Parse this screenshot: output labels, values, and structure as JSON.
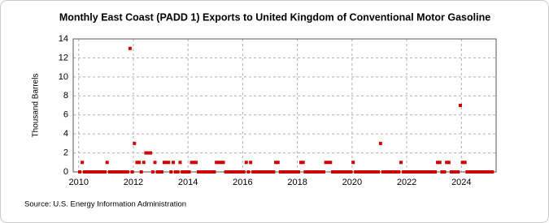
{
  "chart_data": {
    "type": "scatter",
    "title": "Monthly East Coast (PADD 1) Exports to United Kingdom of Conventional Motor Gasoline",
    "y_label": "Thousand Barrels",
    "source": "Source: U.S. Energy Information Administration",
    "color": "#cc0000",
    "grid": true,
    "xlim": [
      2009.8,
      2025.27
    ],
    "xticks": [
      2010,
      2012,
      2014,
      2016,
      2018,
      2020,
      2022,
      2024
    ],
    "ylim": [
      0,
      14
    ],
    "yticks": [
      0,
      2,
      4,
      6,
      8,
      10,
      12,
      14
    ],
    "x": [
      2010.04,
      2010.13,
      2010.21,
      2010.29,
      2010.38,
      2010.46,
      2010.54,
      2010.63,
      2010.71,
      2010.79,
      2010.88,
      2010.96,
      2011.04,
      2011.13,
      2011.21,
      2011.29,
      2011.38,
      2011.46,
      2011.54,
      2011.63,
      2011.71,
      2011.79,
      2011.88,
      2011.96,
      2012.04,
      2012.13,
      2012.21,
      2012.29,
      2012.38,
      2012.46,
      2012.54,
      2012.63,
      2012.71,
      2012.79,
      2012.88,
      2012.96,
      2013.04,
      2013.13,
      2013.21,
      2013.29,
      2013.38,
      2013.46,
      2013.54,
      2013.63,
      2013.71,
      2013.79,
      2013.88,
      2013.96,
      2014.04,
      2014.13,
      2014.21,
      2014.29,
      2014.38,
      2014.46,
      2014.54,
      2014.63,
      2014.71,
      2014.79,
      2014.88,
      2014.96,
      2015.04,
      2015.13,
      2015.21,
      2015.29,
      2015.38,
      2015.46,
      2015.54,
      2015.63,
      2015.71,
      2015.79,
      2015.88,
      2015.96,
      2016.04,
      2016.13,
      2016.21,
      2016.29,
      2016.38,
      2016.46,
      2016.54,
      2016.63,
      2016.71,
      2016.79,
      2016.88,
      2016.96,
      2017.04,
      2017.13,
      2017.21,
      2017.29,
      2017.38,
      2017.46,
      2017.54,
      2017.63,
      2017.71,
      2017.79,
      2017.88,
      2017.96,
      2018.04,
      2018.13,
      2018.21,
      2018.29,
      2018.38,
      2018.46,
      2018.54,
      2018.63,
      2018.71,
      2018.79,
      2018.88,
      2018.96,
      2019.04,
      2019.13,
      2019.21,
      2019.29,
      2019.38,
      2019.46,
      2019.54,
      2019.63,
      2019.71,
      2019.79,
      2019.88,
      2019.96,
      2020.04,
      2020.13,
      2020.21,
      2020.29,
      2020.38,
      2020.46,
      2020.54,
      2020.63,
      2020.71,
      2020.79,
      2020.88,
      2020.96,
      2021.04,
      2021.13,
      2021.21,
      2021.29,
      2021.38,
      2021.46,
      2021.54,
      2021.63,
      2021.71,
      2021.79,
      2021.88,
      2021.96,
      2022.04,
      2022.13,
      2022.21,
      2022.29,
      2022.38,
      2022.46,
      2022.54,
      2022.63,
      2022.71,
      2022.79,
      2022.88,
      2022.96,
      2023.04,
      2023.13,
      2023.21,
      2023.29,
      2023.38,
      2023.46,
      2023.54,
      2023.63,
      2023.71,
      2023.79,
      2023.88,
      2023.96,
      2024.04,
      2024.13,
      2024.21,
      2024.29,
      2024.38,
      2024.46,
      2024.54,
      2024.63,
      2024.71,
      2024.79,
      2024.88,
      2024.96,
      2025.04,
      2025.13
    ],
    "values": [
      0,
      1,
      0,
      0,
      0,
      0,
      0,
      0,
      0,
      0,
      0,
      0,
      1,
      0,
      0,
      0,
      0,
      0,
      0,
      0,
      0,
      0,
      13,
      0,
      3,
      1,
      1,
      0,
      1,
      2,
      2,
      2,
      0,
      1,
      0,
      0,
      0,
      1,
      1,
      1,
      0,
      1,
      0,
      0,
      1,
      0,
      0,
      0,
      0,
      1,
      1,
      1,
      0,
      0,
      0,
      0,
      0,
      0,
      0,
      0,
      1,
      1,
      1,
      1,
      0,
      0,
      0,
      0,
      0,
      0,
      0,
      0,
      0,
      1,
      0,
      1,
      0,
      0,
      0,
      0,
      0,
      0,
      0,
      0,
      0,
      0,
      1,
      1,
      0,
      0,
      0,
      0,
      0,
      0,
      0,
      0,
      0,
      1,
      1,
      0,
      0,
      0,
      0,
      0,
      0,
      0,
      0,
      0,
      1,
      1,
      1,
      0,
      0,
      0,
      0,
      0,
      0,
      0,
      0,
      0,
      1,
      0,
      0,
      0,
      0,
      0,
      0,
      0,
      0,
      0,
      0,
      0,
      3,
      0,
      0,
      0,
      0,
      0,
      0,
      0,
      0,
      1,
      0,
      0,
      0,
      0,
      0,
      0,
      0,
      0,
      0,
      0,
      0,
      0,
      0,
      0,
      0,
      1,
      1,
      0,
      0,
      1,
      1,
      0,
      0,
      0,
      0,
      7,
      1,
      1,
      0,
      0,
      0,
      0,
      0,
      0,
      0,
      0,
      0,
      0,
      0,
      0
    ]
  }
}
